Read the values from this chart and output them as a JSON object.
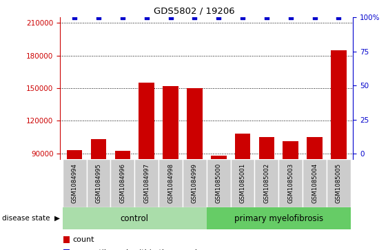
{
  "title": "GDS5802 / 19206",
  "samples": [
    "GSM1084994",
    "GSM1084995",
    "GSM1084996",
    "GSM1084997",
    "GSM1084998",
    "GSM1084999",
    "GSM1085000",
    "GSM1085001",
    "GSM1085002",
    "GSM1085003",
    "GSM1085004",
    "GSM1085005"
  ],
  "counts": [
    93000,
    103000,
    92000,
    155000,
    152000,
    150000,
    88000,
    108000,
    105000,
    101000,
    105000,
    185000
  ],
  "percentile_ranks": [
    100,
    100,
    100,
    100,
    100,
    100,
    100,
    100,
    100,
    100,
    100,
    100
  ],
  "groups": {
    "control": [
      0,
      1,
      2,
      3,
      4,
      5
    ],
    "primary myelofibrosis": [
      6,
      7,
      8,
      9,
      10,
      11
    ]
  },
  "bar_color": "#cc0000",
  "dot_color": "#0000cc",
  "ylim_left": [
    85000,
    215000
  ],
  "yticks_left": [
    90000,
    120000,
    150000,
    180000,
    210000
  ],
  "ylim_right": [
    -3.846,
    96.154
  ],
  "yticks_right": [
    0,
    25,
    50,
    75,
    100
  ],
  "left_axis_color": "#cc0000",
  "right_axis_color": "#0000cc",
  "grid_color": "#000000",
  "background_color": "#ffffff",
  "xlabel_area_color": "#cccccc",
  "control_color": "#aaddaa",
  "pmf_color": "#66cc66"
}
